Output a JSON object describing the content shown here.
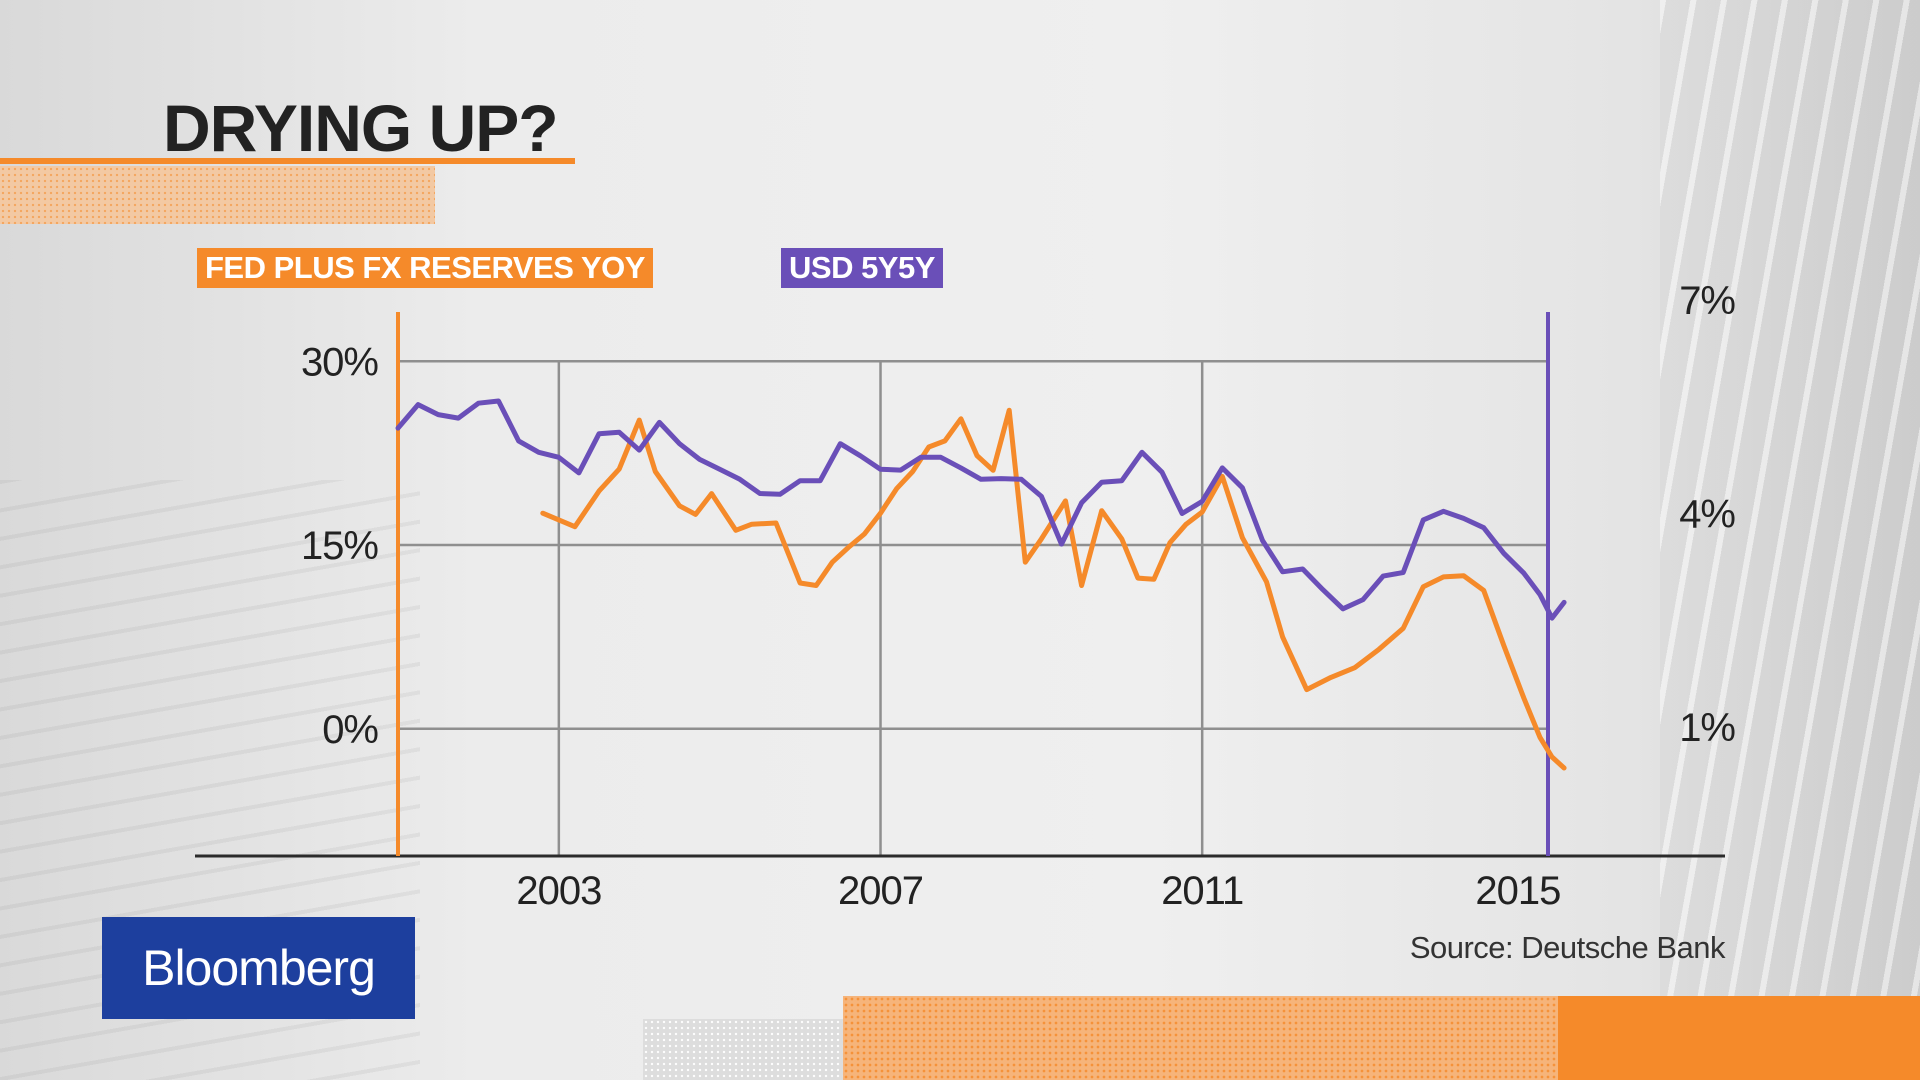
{
  "title": "DRYING UP?",
  "logo": "Bloomberg",
  "chart_data": {
    "type": "line",
    "title": "DRYING UP?",
    "source": "Source: Deutsche Bank",
    "x_ticks": [
      "2003",
      "2007",
      "2011",
      "2015"
    ],
    "x_range": [
      2001.0,
      2015.3
    ],
    "y_left": {
      "ticks": [
        "30%",
        "15%",
        "0%"
      ],
      "range": [
        -10.3,
        35.0
      ],
      "grid_values": [
        30,
        15,
        0
      ]
    },
    "y_right": {
      "ticks": [
        "7%",
        "4%",
        "1%"
      ],
      "range": [
        -0.8,
        7.0
      ],
      "tick_values": [
        7,
        4,
        1
      ]
    },
    "grid": true,
    "legend_position": "top-left",
    "series": [
      {
        "name": "FED PLUS FX RESERVES YOY",
        "axis": "left",
        "color": "#f58a2a",
        "points": [
          [
            2002.8,
            17.6
          ],
          [
            2003.2,
            16.5
          ],
          [
            2003.5,
            19.4
          ],
          [
            2003.75,
            21.2
          ],
          [
            2004.0,
            25.2
          ],
          [
            2004.2,
            21.0
          ],
          [
            2004.5,
            18.2
          ],
          [
            2004.7,
            17.5
          ],
          [
            2004.9,
            19.2
          ],
          [
            2005.2,
            16.2
          ],
          [
            2005.4,
            16.7
          ],
          [
            2005.7,
            16.8
          ],
          [
            2006.0,
            11.9
          ],
          [
            2006.2,
            11.7
          ],
          [
            2006.4,
            13.6
          ],
          [
            2006.6,
            14.8
          ],
          [
            2006.8,
            15.9
          ],
          [
            2007.0,
            17.6
          ],
          [
            2007.2,
            19.6
          ],
          [
            2007.4,
            21.0
          ],
          [
            2007.6,
            23.0
          ],
          [
            2007.8,
            23.5
          ],
          [
            2008.0,
            25.3
          ],
          [
            2008.2,
            22.3
          ],
          [
            2008.4,
            21.1
          ],
          [
            2008.6,
            26.0
          ],
          [
            2008.8,
            13.6
          ],
          [
            2009.0,
            15.5
          ],
          [
            2009.3,
            18.6
          ],
          [
            2009.5,
            11.7
          ],
          [
            2009.75,
            17.8
          ],
          [
            2010.0,
            15.5
          ],
          [
            2010.2,
            12.3
          ],
          [
            2010.4,
            12.2
          ],
          [
            2010.6,
            15.2
          ],
          [
            2010.8,
            16.7
          ],
          [
            2011.0,
            17.7
          ],
          [
            2011.25,
            20.6
          ],
          [
            2011.5,
            15.6
          ],
          [
            2011.8,
            12.0
          ],
          [
            2012.0,
            7.5
          ],
          [
            2012.3,
            3.2
          ],
          [
            2012.6,
            4.2
          ],
          [
            2012.9,
            5.0
          ],
          [
            2013.2,
            6.5
          ],
          [
            2013.5,
            8.2
          ],
          [
            2013.75,
            11.6
          ],
          [
            2014.0,
            12.4
          ],
          [
            2014.25,
            12.5
          ],
          [
            2014.5,
            11.3
          ],
          [
            2014.75,
            6.8
          ],
          [
            2015.0,
            2.5
          ],
          [
            2015.2,
            -0.7
          ],
          [
            2015.35,
            -2.3
          ],
          [
            2015.5,
            -3.2
          ]
        ]
      },
      {
        "name": "USD 5Y5Y",
        "axis": "right",
        "color": "#6a4fb8",
        "points": [
          [
            2001.0,
            5.2
          ],
          [
            2001.25,
            5.53
          ],
          [
            2001.5,
            5.39
          ],
          [
            2001.75,
            5.34
          ],
          [
            2002.0,
            5.55
          ],
          [
            2002.25,
            5.58
          ],
          [
            2002.5,
            5.02
          ],
          [
            2002.75,
            4.86
          ],
          [
            2003.0,
            4.79
          ],
          [
            2003.25,
            4.57
          ],
          [
            2003.5,
            5.12
          ],
          [
            2003.75,
            5.14
          ],
          [
            2004.0,
            4.89
          ],
          [
            2004.25,
            5.28
          ],
          [
            2004.5,
            4.98
          ],
          [
            2004.75,
            4.76
          ],
          [
            2005.0,
            4.62
          ],
          [
            2005.25,
            4.48
          ],
          [
            2005.5,
            4.28
          ],
          [
            2005.75,
            4.27
          ],
          [
            2006.0,
            4.46
          ],
          [
            2006.25,
            4.46
          ],
          [
            2006.5,
            4.98
          ],
          [
            2006.75,
            4.81
          ],
          [
            2007.0,
            4.62
          ],
          [
            2007.25,
            4.61
          ],
          [
            2007.5,
            4.79
          ],
          [
            2007.75,
            4.79
          ],
          [
            2008.0,
            4.64
          ],
          [
            2008.25,
            4.48
          ],
          [
            2008.5,
            4.49
          ],
          [
            2008.75,
            4.48
          ],
          [
            2009.0,
            4.24
          ],
          [
            2009.25,
            3.57
          ],
          [
            2009.5,
            4.15
          ],
          [
            2009.75,
            4.44
          ],
          [
            2010.0,
            4.46
          ],
          [
            2010.25,
            4.86
          ],
          [
            2010.5,
            4.58
          ],
          [
            2010.75,
            4.0
          ],
          [
            2011.0,
            4.17
          ],
          [
            2011.25,
            4.64
          ],
          [
            2011.5,
            4.36
          ],
          [
            2011.75,
            3.62
          ],
          [
            2012.0,
            3.18
          ],
          [
            2012.25,
            3.22
          ],
          [
            2012.5,
            2.93
          ],
          [
            2012.75,
            2.66
          ],
          [
            2013.0,
            2.79
          ],
          [
            2013.25,
            3.12
          ],
          [
            2013.5,
            3.17
          ],
          [
            2013.75,
            3.91
          ],
          [
            2014.0,
            4.03
          ],
          [
            2014.25,
            3.93
          ],
          [
            2014.5,
            3.8
          ],
          [
            2014.75,
            3.44
          ],
          [
            2015.0,
            3.16
          ],
          [
            2015.2,
            2.86
          ],
          [
            2015.35,
            2.53
          ],
          [
            2015.5,
            2.75
          ]
        ]
      }
    ]
  }
}
